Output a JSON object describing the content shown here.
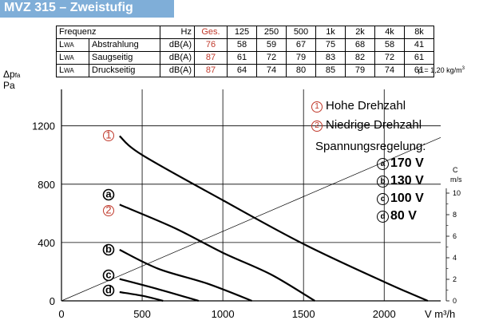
{
  "title": "MVZ 315 – Zweistufig",
  "table": {
    "header": {
      "freq_label": "Frequenz",
      "unit": "Hz",
      "ges": "Ges.",
      "bands": [
        "125",
        "250",
        "500",
        "1k",
        "2k",
        "4k",
        "8k"
      ]
    },
    "rows": [
      {
        "lwa_main": "L",
        "lwa_sub": "WA",
        "name": "Abstrahlung",
        "unit": "dB(A)",
        "ges": "76",
        "values": [
          "58",
          "59",
          "67",
          "75",
          "68",
          "58",
          "41"
        ]
      },
      {
        "lwa_main": "L",
        "lwa_sub": "WA",
        "name": "Saugseitig",
        "unit": "dB(A)",
        "ges": "87",
        "values": [
          "61",
          "72",
          "79",
          "83",
          "82",
          "72",
          "61"
        ]
      },
      {
        "lwa_main": "L",
        "lwa_sub": "WA",
        "name": "Druckseitig",
        "unit": "dB(A)",
        "ges": "87",
        "values": [
          "64",
          "74",
          "80",
          "85",
          "79",
          "74",
          "61"
        ]
      }
    ],
    "rho_note": "ρ = 1,20 kg/m",
    "rho_sup": "3"
  },
  "legend": {
    "hohe": {
      "symbol": "1",
      "label": "Hohe Drehzahl"
    },
    "niedrige": {
      "symbol": "2",
      "label": "Niedrige Drehzahl"
    },
    "regelung_title": "Spannungsregelung:",
    "voltages": [
      {
        "symbol": "a",
        "label": "170 V"
      },
      {
        "symbol": "b",
        "label": "130 V"
      },
      {
        "symbol": "c",
        "label": "100 V"
      },
      {
        "symbol": "d",
        "label": "80 V"
      }
    ]
  },
  "chart_data": {
    "type": "line",
    "ylabel_main": "Δp",
    "ylabel_sub": "fa",
    "ylabel_unit": "Pa",
    "xlabel": "V m³/h",
    "xlim": [
      0,
      2350
    ],
    "ylim": [
      0,
      1450
    ],
    "x_ticks": [
      "0",
      "500",
      "1000",
      "1500",
      "2000"
    ],
    "y_ticks": [
      "0",
      "400",
      "800",
      "1200"
    ],
    "right_axis": {
      "label": "C",
      "unit": "m/s",
      "ticks": [
        "0",
        "2",
        "4",
        "6",
        "8",
        "10"
      ],
      "max": 10
    },
    "series": [
      {
        "marker": "1",
        "points": [
          [
            360,
            1130
          ],
          [
            500,
            1000
          ],
          [
            1000,
            690
          ],
          [
            1500,
            390
          ],
          [
            2000,
            130
          ],
          [
            2270,
            0
          ]
        ]
      },
      {
        "marker": "a",
        "points": [
          [
            360,
            660
          ],
          [
            700,
            500
          ],
          [
            1000,
            330
          ],
          [
            1300,
            180
          ],
          [
            1570,
            0
          ]
        ]
      },
      {
        "marker": "b",
        "points": [
          [
            360,
            350
          ],
          [
            600,
            220
          ],
          [
            900,
            120
          ],
          [
            1180,
            0
          ]
        ]
      },
      {
        "marker": "c",
        "points": [
          [
            360,
            150
          ],
          [
            600,
            80
          ],
          [
            850,
            0
          ]
        ]
      },
      {
        "marker": "d",
        "points": [
          [
            360,
            60
          ],
          [
            500,
            35
          ],
          [
            630,
            0
          ]
        ]
      }
    ],
    "series_markers": {
      "1": "1",
      "2": "2",
      "a": "a",
      "b": "b",
      "c": "c",
      "d": "d"
    },
    "velocity_line": {
      "points": [
        [
          0,
          0
        ],
        [
          2350,
          1120
        ]
      ]
    }
  }
}
